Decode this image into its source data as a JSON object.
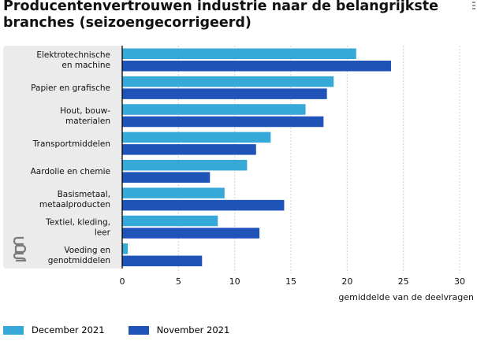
{
  "page": {
    "title": "Producentenvertrouwen industrie naar de belangrijkste branches (seizoengecorrigeerd)",
    "logo_label": "cbs"
  },
  "colors": {
    "panel_bg": "#ebebeb",
    "grid": "#d0d0d0",
    "axis": "#000000"
  },
  "chart_data": {
    "type": "bar",
    "orientation": "horizontal",
    "categories": [
      [
        "Elektrotechnische",
        "en machine"
      ],
      [
        "Papier en grafische"
      ],
      [
        "Hout, bouw-",
        "materialen"
      ],
      [
        "Transportmiddelen"
      ],
      [
        "Aardolie en chemie"
      ],
      [
        "Basismetaal,",
        "metaalproducten"
      ],
      [
        "Textiel, kleding,",
        "leer"
      ],
      [
        "Voeding en",
        "genotmiddelen"
      ]
    ],
    "series": [
      {
        "name": "December 2021",
        "color": "#36a9d8",
        "values": [
          20.8,
          18.8,
          16.3,
          13.2,
          11.1,
          9.1,
          8.5,
          0.5
        ]
      },
      {
        "name": "November 2021",
        "color": "#1f53b8",
        "values": [
          23.9,
          18.2,
          17.9,
          11.9,
          7.8,
          14.4,
          12.2,
          7.1
        ]
      }
    ],
    "xlim": [
      0,
      30
    ],
    "xticks": [
      0,
      5,
      10,
      15,
      20,
      25,
      30
    ],
    "xlabel": "gemiddelde van de deelvragen",
    "grid": true,
    "legend_position": "bottom-left"
  }
}
